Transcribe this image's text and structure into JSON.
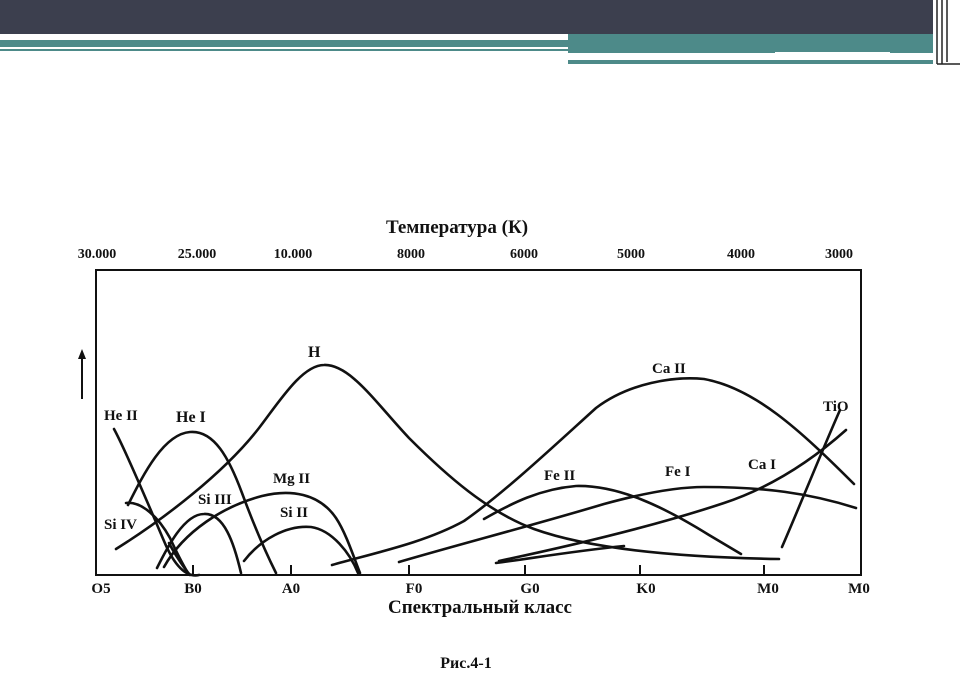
{
  "diagram": {
    "top_axis_title": "Температура (К)",
    "top_ticks": [
      "30.000",
      "25.000",
      "10.000",
      "8000",
      "6000",
      "5000",
      "4000",
      "3000"
    ],
    "bottom_ticks": [
      "O5",
      "B0",
      "A0",
      "F0",
      "G0",
      "K0",
      "M0",
      "M0"
    ],
    "bottom_axis_title": "Спектральный класс",
    "y_arrow": "↑",
    "curves": [
      {
        "label": "He II"
      },
      {
        "label": "He I"
      },
      {
        "label": "H"
      },
      {
        "label": "Si III"
      },
      {
        "label": "Mg II"
      },
      {
        "label": "Si II"
      },
      {
        "label": "Si IV"
      },
      {
        "label": "Ca II"
      },
      {
        "label": "Fe II"
      },
      {
        "label": "Fe I"
      },
      {
        "label": "Ca I"
      },
      {
        "label": "TiO"
      }
    ],
    "caption": "Рис.4-1"
  },
  "colors": {
    "top_bar": "#3c3f4e",
    "accent_teal": "#4d8a89",
    "ink": "#111111"
  }
}
